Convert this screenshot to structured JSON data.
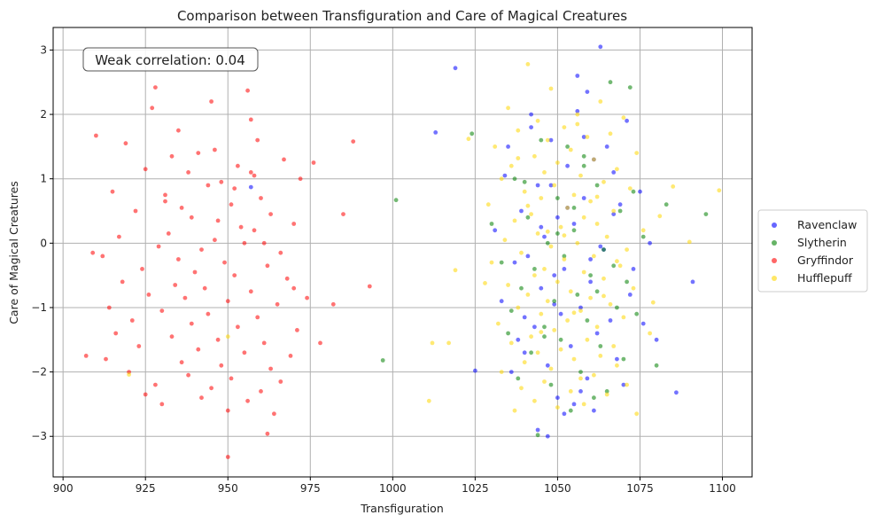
{
  "chart_data": {
    "type": "scatter",
    "title": "Comparison between Transfiguration and Care of Magical Creatures",
    "xlabel": "Transfiguration",
    "ylabel": "Care of Magical Creatures",
    "xlim": [
      897,
      1109
    ],
    "ylim": [
      -3.63,
      3.35
    ],
    "xticks": [
      900,
      925,
      950,
      975,
      1000,
      1025,
      1050,
      1075,
      1100
    ],
    "yticks": [
      -3,
      -2,
      -1,
      0,
      1,
      2,
      3
    ],
    "xtick_labels": [
      "900",
      "925",
      "950",
      "975",
      "1000",
      "1025",
      "1050",
      "1075",
      "1100"
    ],
    "ytick_labels": [
      "−3",
      "−2",
      "−1",
      "0",
      "1",
      "2",
      "3"
    ],
    "grid": true,
    "legend_position": "center-right-outside",
    "annotation": "Weak correlation: 0.04",
    "series": [
      {
        "name": "Ravenclaw",
        "color": "#0000ff",
        "x": [
          1063,
          1056,
          1042,
          1059,
          1019,
          1071,
          1035,
          1048,
          1061,
          1067,
          1044,
          1053,
          1039,
          1075,
          1050,
          1058,
          1031,
          1069,
          1046,
          1055,
          1064,
          1041,
          1078,
          1052,
          1037,
          1060,
          1049,
          1072,
          1045,
          1057,
          1033,
          1066,
          1051,
          1062,
          1043,
          1080,
          1054,
          1040,
          1068,
          1047,
          1059,
          1036,
          1070,
          1050,
          1055,
          1044,
          1061,
          1038,
          1073,
          1048,
          1065,
          1057,
          1042,
          1052,
          1086,
          1091,
          1025,
          1013,
          957,
          1047,
          1053,
          1060,
          1034,
          1076,
          1045,
          1058,
          1049,
          1063,
          1040,
          1067,
          1056
        ],
        "y": [
          3.05,
          2.6,
          2.0,
          2.35,
          2.72,
          1.9,
          1.5,
          1.6,
          1.3,
          1.1,
          0.9,
          1.2,
          0.5,
          0.8,
          0.4,
          0.7,
          0.2,
          0.6,
          0.1,
          0.3,
          -0.1,
          -0.2,
          0.0,
          -0.4,
          -0.3,
          -0.6,
          -0.5,
          -0.8,
          -0.7,
          -1.0,
          -0.9,
          -1.2,
          -1.1,
          -1.4,
          -1.3,
          -1.5,
          -1.6,
          -1.7,
          -1.8,
          -1.9,
          -2.1,
          -2.0,
          -2.2,
          -2.4,
          -2.5,
          -2.9,
          -2.6,
          -1.5,
          -0.4,
          0.9,
          1.5,
          -2.3,
          1.8,
          -2.65,
          -2.32,
          -0.6,
          -1.98,
          1.72,
          0.87,
          -3.0,
          0.55,
          -0.25,
          1.05,
          -1.25,
          0.25,
          1.65,
          -0.95,
          -0.05,
          -1.15,
          0.45,
          2.05
        ]
      },
      {
        "name": "Slytherin",
        "color": "#008000",
        "x": [
          1066,
          1072,
          1045,
          1058,
          1037,
          1062,
          1050,
          1069,
          1041,
          1055,
          1076,
          1047,
          1064,
          1033,
          1052,
          1060,
          1043,
          1071,
          1056,
          1039,
          1068,
          1049,
          1074,
          1046,
          1059,
          1035,
          1063,
          1051,
          1070,
          1042,
          1057,
          1080,
          1048,
          1065,
          1038,
          1054,
          1061,
          1044,
          1073,
          1053,
          997,
          1001,
          1095,
          1024,
          1030,
          1046,
          1083,
          1040,
          1058,
          1067,
          1050,
          1062,
          1036,
          1055
        ],
        "y": [
          2.5,
          2.42,
          1.6,
          1.2,
          1.0,
          0.9,
          0.7,
          0.5,
          0.4,
          0.2,
          0.1,
          0.0,
          -0.1,
          -0.3,
          -0.2,
          -0.5,
          -0.4,
          -0.6,
          -0.8,
          -0.7,
          -1.0,
          -0.9,
          -1.1,
          -1.3,
          -1.2,
          -1.4,
          -1.6,
          -1.5,
          -1.8,
          -1.7,
          -2.0,
          -1.9,
          -2.2,
          -2.3,
          -2.1,
          -2.6,
          -2.4,
          -2.98,
          0.8,
          1.5,
          -1.82,
          0.67,
          0.45,
          1.7,
          0.3,
          -1.45,
          0.6,
          0.95,
          1.35,
          -0.35,
          0.15,
          -0.75,
          -1.05,
          0.55
        ]
      },
      {
        "name": "Gryffindor",
        "color": "#ff0000",
        "x": [
          928,
          945,
          956,
          927,
          910,
          957,
          959,
          919,
          933,
          941,
          953,
          967,
          938,
          925,
          948,
          972,
          915,
          931,
          944,
          960,
          936,
          951,
          963,
          922,
          947,
          939,
          954,
          970,
          917,
          932,
          946,
          958,
          929,
          942,
          955,
          966,
          912,
          935,
          949,
          962,
          924,
          940,
          952,
          968,
          918,
          934,
          943,
          957,
          926,
          937,
          950,
          965,
          914,
          930,
          944,
          959,
          921,
          939,
          953,
          971,
          916,
          933,
          947,
          961,
          923,
          941,
          955,
          969,
          913,
          936,
          948,
          963,
          920,
          938,
          951,
          966,
          928,
          945,
          960,
          925,
          942,
          956,
          930,
          950,
          964,
          935,
          946,
          958,
          931,
          952,
          907,
          909,
          985,
          988,
          993,
          976,
          978,
          982,
          950,
          962,
          970,
          974,
          961,
          957
        ],
        "y": [
          2.42,
          2.2,
          2.37,
          2.1,
          1.67,
          1.92,
          1.6,
          1.55,
          1.35,
          1.4,
          1.2,
          1.3,
          1.1,
          1.15,
          0.95,
          1.0,
          0.8,
          0.75,
          0.9,
          0.7,
          0.55,
          0.6,
          0.45,
          0.5,
          0.35,
          0.4,
          0.25,
          0.3,
          0.1,
          0.15,
          0.05,
          0.2,
          -0.05,
          -0.1,
          0.0,
          -0.15,
          -0.2,
          -0.25,
          -0.3,
          -0.35,
          -0.4,
          -0.45,
          -0.5,
          -0.55,
          -0.6,
          -0.65,
          -0.7,
          -0.75,
          -0.8,
          -0.85,
          -0.9,
          -0.95,
          -1.0,
          -1.05,
          -1.1,
          -1.15,
          -1.2,
          -1.25,
          -1.3,
          -1.35,
          -1.4,
          -1.45,
          -1.5,
          -1.55,
          -1.6,
          -1.65,
          -1.7,
          -1.75,
          -1.8,
          -1.85,
          -1.9,
          -1.95,
          -2.0,
          -2.05,
          -2.1,
          -2.15,
          -2.2,
          -2.25,
          -2.3,
          -2.35,
          -2.4,
          -2.45,
          -2.5,
          -2.6,
          -2.65,
          1.75,
          1.45,
          1.05,
          0.65,
          0.85,
          -1.75,
          -0.15,
          0.45,
          1.58,
          -0.67,
          1.25,
          -1.55,
          -0.95,
          -3.32,
          -2.96,
          -0.7,
          -0.85,
          0.0,
          1.1
        ]
      },
      {
        "name": "Hufflepuff",
        "color": "#ffd700",
        "x": [
          1041,
          1048,
          1063,
          1035,
          1056,
          1044,
          1070,
          1052,
          1038,
          1066,
          1047,
          1059,
          1031,
          1054,
          1074,
          1043,
          1061,
          1050,
          1036,
          1068,
          1046,
          1057,
          1033,
          1064,
          1049,
          1072,
          1040,
          1055,
          1045,
          1060,
          1029,
          1053,
          1067,
          1042,
          1058,
          1037,
          1062,
          1051,
          1076,
          1044,
          1065,
          1034,
          1056,
          1048,
          1071,
          1039,
          1061,
          1052,
          1030,
          1069,
          1046,
          1058,
          1043,
          1064,
          1050,
          1035,
          1073,
          1054,
          1041,
          1060,
          1047,
          1066,
          1038,
          1057,
          1045,
          1070,
          1053,
          1032,
          1062,
          1049,
          1078,
          1042,
          1059,
          1036,
          1067,
          1051,
          1044,
          1063,
          1055,
          1040,
          1068,
          1048,
          1033,
          1061,
          1057,
          1046,
          1071,
          1039,
          1054,
          1065,
          1043,
          1058,
          1050,
          1037,
          1074,
          1056,
          1045,
          1062,
          1028,
          1052,
          1011,
          1019,
          1085,
          1090,
          1099,
          1079,
          1023,
          1017,
          950,
          920,
          1012,
          1081,
          1068,
          1041,
          1064,
          1038,
          1055,
          1047
        ],
        "y": [
          2.78,
          2.4,
          2.2,
          2.1,
          2.0,
          1.9,
          1.95,
          1.8,
          1.75,
          1.7,
          1.6,
          1.65,
          1.5,
          1.45,
          1.4,
          1.35,
          1.3,
          1.25,
          1.2,
          1.15,
          1.1,
          1.05,
          1.0,
          0.95,
          0.9,
          0.85,
          0.8,
          0.75,
          0.7,
          0.65,
          0.6,
          0.55,
          0.5,
          0.45,
          0.4,
          0.35,
          0.3,
          0.25,
          0.2,
          0.15,
          0.1,
          0.05,
          0.0,
          -0.05,
          -0.1,
          -0.15,
          -0.2,
          -0.25,
          -0.3,
          -0.35,
          -0.4,
          -0.45,
          -0.5,
          -0.55,
          -0.6,
          -0.65,
          -0.7,
          -0.75,
          -0.8,
          -0.85,
          -0.9,
          -0.95,
          -1.0,
          -1.05,
          -1.1,
          -1.15,
          -1.2,
          -1.25,
          -1.3,
          -1.35,
          -1.4,
          -1.45,
          -1.5,
          -1.55,
          -1.6,
          -1.65,
          -1.7,
          -1.75,
          -1.8,
          -1.85,
          -1.9,
          -1.95,
          -2.0,
          -2.05,
          -2.1,
          -2.15,
          -2.2,
          -2.25,
          -2.3,
          -2.35,
          -2.45,
          -2.5,
          -2.55,
          -2.6,
          -2.65,
          1.85,
          -1.38,
          0.72,
          -0.62,
          0.12,
          -2.45,
          -0.42,
          0.88,
          0.02,
          0.82,
          -0.92,
          1.62,
          -1.55,
          -1.45,
          -2.04,
          -1.55,
          0.42,
          -0.28,
          0.58,
          -0.82,
          1.32,
          -1.08,
          0.18
        ]
      }
    ]
  }
}
